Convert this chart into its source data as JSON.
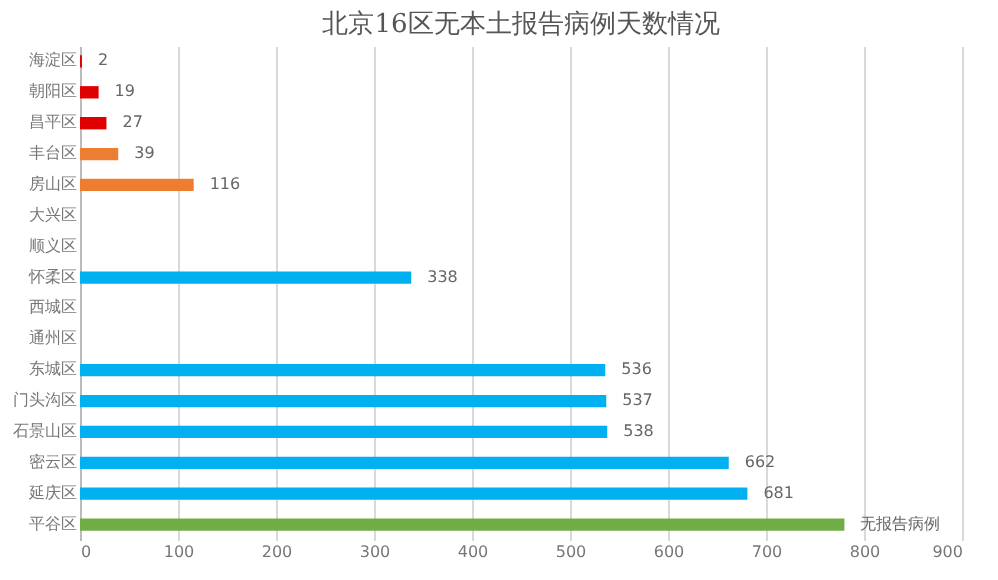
{
  "chart_data": {
    "type": "bar",
    "orientation": "horizontal",
    "title": "北京16区无本土报告病例天数情况",
    "categories": [
      "海淀区",
      "朝阳区",
      "昌平区",
      "丰台区",
      "房山区",
      "大兴区",
      "顺义区",
      "怀柔区",
      "西城区",
      "通州区",
      "东城区",
      "门头沟区",
      "石景山区",
      "密云区",
      "延庆区",
      "平谷区"
    ],
    "values": [
      2,
      19,
      27,
      39,
      116,
      null,
      null,
      338,
      null,
      null,
      536,
      537,
      538,
      662,
      681,
      780
    ],
    "value_labels": [
      "2",
      "19",
      "27",
      "39",
      "116",
      null,
      null,
      "338",
      null,
      null,
      "536",
      "537",
      "538",
      "662",
      "681",
      "无报告病例"
    ],
    "colors": [
      "#e00000",
      "#e00000",
      "#e00000",
      "#ed7d31",
      "#ed7d31",
      "#00b0f0",
      "#00b0f0",
      "#00b0f0",
      "#00b0f0",
      "#00b0f0",
      "#00b0f0",
      "#00b0f0",
      "#00b0f0",
      "#00b0f0",
      "#00b0f0",
      "#70ad47"
    ],
    "xlim": [
      0,
      900
    ],
    "xticks": [
      0,
      100,
      200,
      300,
      400,
      500,
      600,
      700,
      800,
      900
    ],
    "grid": "x"
  }
}
